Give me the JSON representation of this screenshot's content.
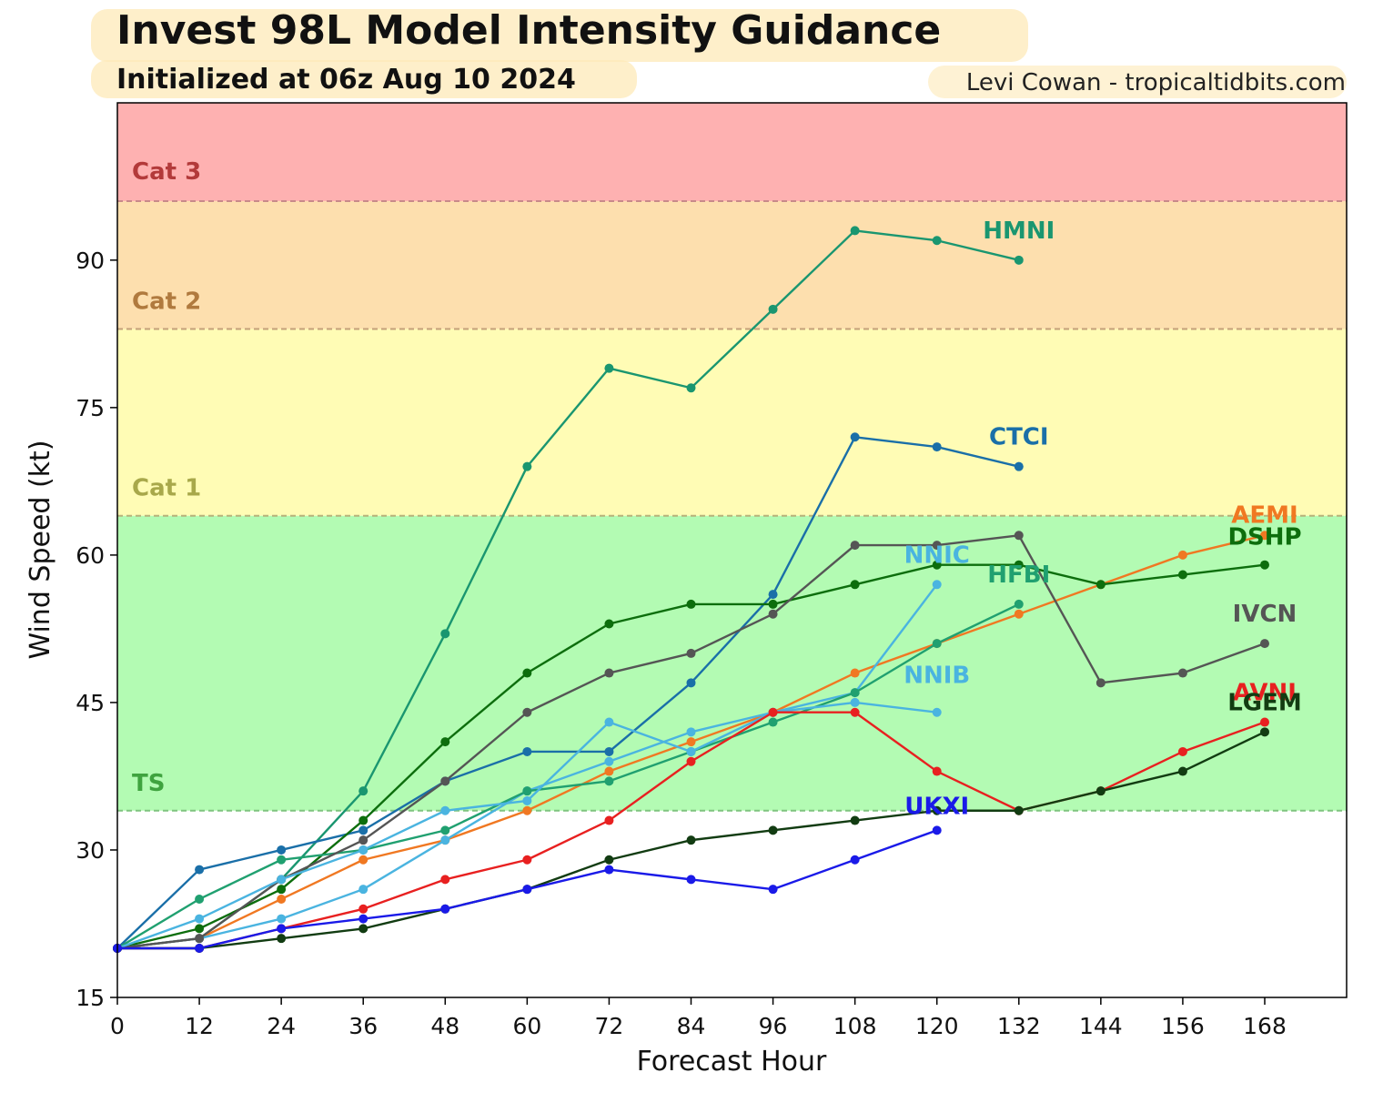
{
  "title": "Invest 98L Model Intensity Guidance",
  "subtitle": "Initialized at 06z Aug 10 2024",
  "credit": "Levi Cowan - tropicaltidbits.com",
  "chart_data": {
    "type": "line",
    "xlabel": "Forecast Hour",
    "ylabel": "Wind Speed (kt)",
    "xlim": [
      0,
      180
    ],
    "ylim": [
      15,
      106
    ],
    "xticks": [
      0,
      12,
      24,
      36,
      48,
      60,
      72,
      84,
      96,
      108,
      120,
      132,
      144,
      156,
      168
    ],
    "yticks": [
      15,
      30,
      45,
      60,
      75,
      90
    ],
    "bands": [
      {
        "label": "TS",
        "from": 34,
        "to": 64,
        "color": "#b3fbb3",
        "text_color": "#3fa33f",
        "line_color": "#7fc47f"
      },
      {
        "label": "Cat 1",
        "from": 64,
        "to": 83,
        "color": "#fffcb5",
        "text_color": "#a8a84a",
        "line_color": "#b8b27a"
      },
      {
        "label": "Cat 2",
        "from": 83,
        "to": 96,
        "color": "#fddfae",
        "text_color": "#b07a3e",
        "line_color": "#c4a07a"
      },
      {
        "label": "Cat 3",
        "from": 96,
        "to": 106,
        "color": "#feb1b1",
        "text_color": "#b33a3a",
        "line_color": "#c88a8a"
      }
    ],
    "series": [
      {
        "name": "HMNI",
        "color": "#1a9670",
        "x": [
          0,
          12,
          24,
          36,
          48,
          60,
          72,
          84,
          96,
          108,
          120,
          132
        ],
        "values": [
          20,
          21,
          27,
          36,
          52,
          69,
          79,
          77,
          85,
          93,
          92,
          90
        ]
      },
      {
        "name": "CTCI",
        "color": "#1a6fa8",
        "x": [
          0,
          12,
          24,
          36,
          48,
          60,
          72,
          84,
          96,
          108,
          120,
          132
        ],
        "values": [
          20,
          28,
          30,
          32,
          37,
          40,
          40,
          47,
          56,
          72,
          71,
          69
        ]
      },
      {
        "name": "AEMI",
        "color": "#f07822",
        "x": [
          0,
          12,
          24,
          36,
          48,
          60,
          72,
          84,
          96,
          108,
          120,
          132,
          144,
          156,
          168
        ],
        "values": [
          20,
          21,
          25,
          29,
          31,
          34,
          38,
          41,
          44,
          48,
          51,
          54,
          57,
          60,
          62
        ]
      },
      {
        "name": "DSHP",
        "color": "#0d6e0d",
        "x": [
          0,
          12,
          24,
          36,
          48,
          60,
          72,
          84,
          96,
          108,
          120,
          132,
          144,
          156,
          168
        ],
        "values": [
          20,
          22,
          26,
          33,
          41,
          48,
          53,
          55,
          55,
          57,
          59,
          59,
          57,
          58,
          59
        ]
      },
      {
        "name": "NNIC",
        "color": "#4ab4e0",
        "x": [
          0,
          12,
          24,
          36,
          48,
          60,
          72,
          84,
          96,
          108,
          120
        ],
        "values": [
          20,
          21,
          23,
          26,
          31,
          36,
          39,
          42,
          44,
          46,
          57
        ]
      },
      {
        "name": "HFBI",
        "color": "#20a070",
        "x": [
          0,
          12,
          24,
          36,
          48,
          60,
          72,
          84,
          96,
          108,
          120,
          132
        ],
        "values": [
          20,
          25,
          29,
          30,
          32,
          36,
          37,
          40,
          43,
          46,
          51,
          55
        ]
      },
      {
        "name": "IVCN",
        "color": "#555555",
        "x": [
          0,
          12,
          24,
          36,
          48,
          60,
          72,
          84,
          96,
          108,
          120,
          132,
          144,
          156,
          168
        ],
        "values": [
          20,
          21,
          27,
          31,
          37,
          44,
          48,
          50,
          54,
          61,
          61,
          62,
          47,
          48,
          51
        ]
      },
      {
        "name": "NNIB",
        "color": "#4ab4e0",
        "x": [
          0,
          12,
          24,
          36,
          48,
          60,
          72,
          84,
          96,
          108,
          120
        ],
        "values": [
          20,
          23,
          27,
          30,
          34,
          35,
          43,
          40,
          44,
          45,
          44
        ]
      },
      {
        "name": "AVNI",
        "color": "#e82020",
        "x": [
          0,
          12,
          24,
          36,
          48,
          60,
          72,
          84,
          96,
          108,
          120,
          132,
          144,
          156,
          168
        ],
        "values": [
          20,
          20,
          22,
          24,
          27,
          29,
          33,
          39,
          44,
          44,
          38,
          34,
          36,
          40,
          43
        ]
      },
      {
        "name": "LGEM",
        "color": "#123c12",
        "x": [
          0,
          12,
          24,
          36,
          48,
          60,
          72,
          84,
          96,
          108,
          120,
          132,
          144,
          156,
          168
        ],
        "values": [
          20,
          20,
          21,
          22,
          24,
          26,
          29,
          31,
          32,
          33,
          34,
          34,
          36,
          38,
          42
        ]
      },
      {
        "name": "UKXI",
        "color": "#1a1ae8",
        "x": [
          0,
          12,
          24,
          36,
          48,
          60,
          72,
          84,
          96,
          108,
          120
        ],
        "values": [
          20,
          20,
          22,
          23,
          24,
          26,
          28,
          27,
          26,
          29,
          32
        ]
      }
    ]
  }
}
